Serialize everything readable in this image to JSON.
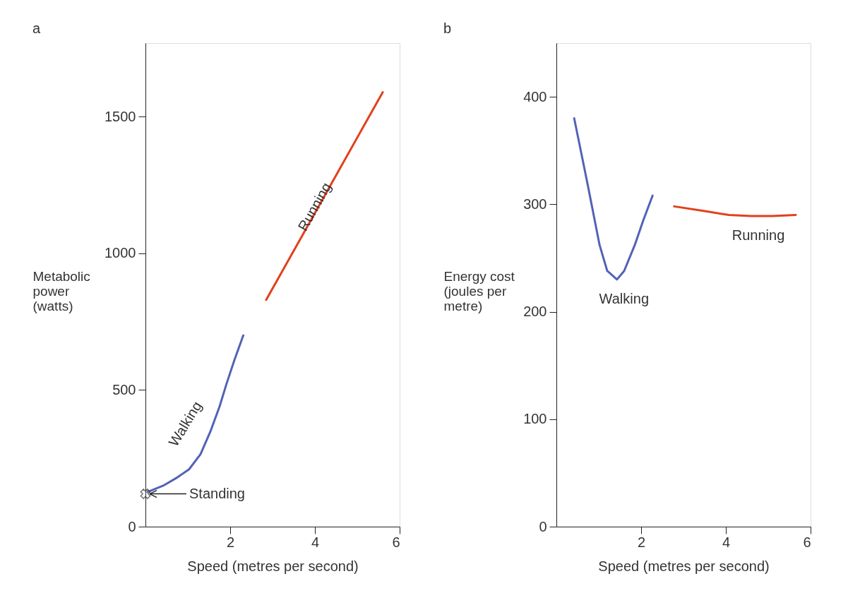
{
  "chart_data": [
    {
      "type": "line",
      "title": "a",
      "xlabel": "Speed (metres per second)",
      "ylabel": "Metabolic\npower\n(watts)",
      "xlim": [
        0,
        6
      ],
      "xticks": [
        2,
        4,
        6
      ],
      "ylim": [
        0,
        1770
      ],
      "yticks": [
        0,
        500,
        1000,
        1500
      ],
      "grid": false,
      "marker": "none",
      "line_style": "solid",
      "series": [
        {
          "name": "Walking",
          "color": "#5262b8",
          "x": [
            0.05,
            0.42,
            0.75,
            1.03,
            1.3,
            1.53,
            1.75,
            1.91,
            2.1,
            2.31
          ],
          "values": [
            127,
            150,
            180,
            210,
            265,
            347,
            440,
            521,
            610,
            700
          ]
        },
        {
          "name": "Running",
          "color": "#e2401c",
          "x": [
            2.85,
            5.6
          ],
          "values": [
            830,
            1590
          ]
        },
        {
          "type": "scatter",
          "marker": "cross",
          "color": "#333333",
          "x": [
            0
          ],
          "values": [
            120
          ]
        }
      ],
      "annotations": [
        {
          "text": "Standing",
          "x": 0,
          "y": 120
        }
      ]
    },
    {
      "type": "line",
      "title": "b",
      "xlabel": "Speed (metres per second)",
      "ylabel": "Energy cost\n(joules per\nmetre)",
      "xlim": [
        0,
        6
      ],
      "xticks": [
        2,
        4,
        6
      ],
      "ylim": [
        0,
        450
      ],
      "yticks": [
        0,
        100,
        200,
        300,
        400
      ],
      "grid": false,
      "marker": "none",
      "line_style": "solid",
      "series": [
        {
          "name": "Walking",
          "color": "#5262b8",
          "x": [
            0.42,
            0.73,
            1.02,
            1.2,
            1.43,
            1.6,
            1.85,
            2.05,
            2.27
          ],
          "values": [
            380,
            320,
            262,
            238,
            230,
            238,
            262,
            285,
            308
          ]
        },
        {
          "name": "Running",
          "color": "#e2401c",
          "x": [
            2.78,
            3.45,
            4.07,
            4.6,
            5.1,
            5.65
          ],
          "values": [
            298,
            294,
            290,
            289,
            289,
            290
          ]
        }
      ]
    }
  ]
}
